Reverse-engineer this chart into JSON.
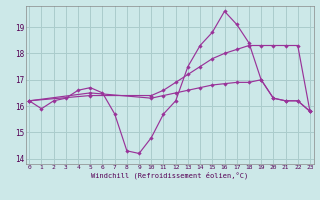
{
  "xlabel": "Windchill (Refroidissement éolien,°C)",
  "background_color": "#cce8e8",
  "grid_color": "#aacccc",
  "line_color": "#993399",
  "xlim_min": -0.3,
  "xlim_max": 23.3,
  "ylim_min": 13.8,
  "ylim_max": 19.8,
  "yticks": [
    14,
    15,
    16,
    17,
    18,
    19
  ],
  "xticks": [
    0,
    1,
    2,
    3,
    4,
    5,
    6,
    7,
    8,
    9,
    10,
    11,
    12,
    13,
    14,
    15,
    16,
    17,
    18,
    19,
    20,
    21,
    22,
    23
  ],
  "line1_x": [
    0,
    1,
    2,
    3,
    4,
    5,
    6,
    7,
    8,
    9,
    10,
    11,
    12,
    13,
    14,
    15,
    16,
    17,
    18,
    19,
    20,
    21,
    22,
    23
  ],
  "line1_y": [
    16.2,
    15.9,
    16.2,
    16.3,
    16.6,
    16.7,
    16.5,
    15.7,
    14.3,
    14.2,
    14.8,
    15.7,
    16.2,
    17.5,
    18.3,
    18.8,
    19.6,
    19.1,
    18.4,
    17.0,
    16.3,
    16.2,
    16.2,
    15.8
  ],
  "line2_x": [
    0,
    5,
    10,
    11,
    12,
    13,
    14,
    15,
    16,
    17,
    18,
    19,
    20,
    21,
    22,
    23
  ],
  "line2_y": [
    16.2,
    16.4,
    16.4,
    16.6,
    16.9,
    17.2,
    17.5,
    17.8,
    18.0,
    18.15,
    18.3,
    18.3,
    18.3,
    18.3,
    18.3,
    15.8
  ],
  "line3_x": [
    0,
    5,
    10,
    11,
    12,
    13,
    14,
    15,
    16,
    17,
    18,
    19,
    20,
    21,
    22,
    23
  ],
  "line3_y": [
    16.2,
    16.5,
    16.3,
    16.4,
    16.5,
    16.6,
    16.7,
    16.8,
    16.85,
    16.9,
    16.9,
    17.0,
    16.3,
    16.2,
    16.2,
    15.8
  ]
}
